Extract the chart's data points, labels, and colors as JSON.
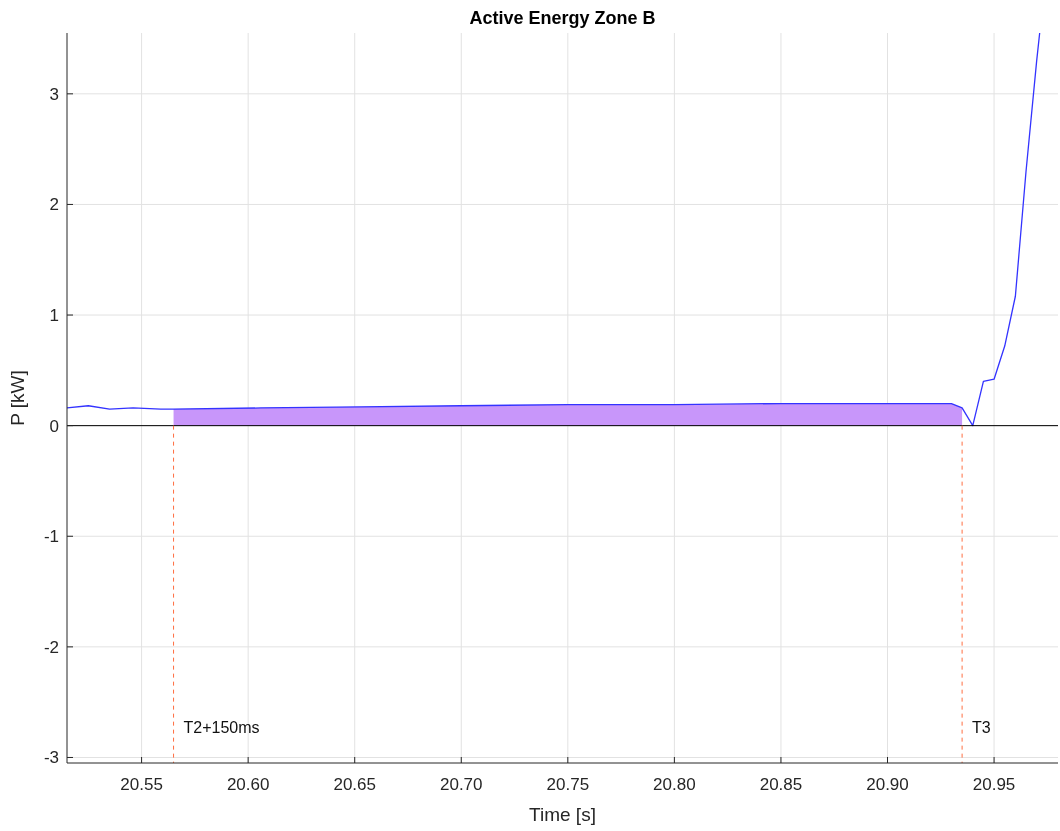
{
  "chart_data": {
    "type": "line",
    "title": "Active Energy Zone B",
    "xlabel": "Time [s]",
    "ylabel": "P [kW]",
    "xlim": [
      20.515,
      20.98
    ],
    "ylim": [
      -3.05,
      3.55
    ],
    "xticks": [
      {
        "value": 20.55,
        "label": "20.55"
      },
      {
        "value": 20.6,
        "label": "20.60"
      },
      {
        "value": 20.65,
        "label": "20.65"
      },
      {
        "value": 20.7,
        "label": "20.70"
      },
      {
        "value": 20.75,
        "label": "20.75"
      },
      {
        "value": 20.8,
        "label": "20.80"
      },
      {
        "value": 20.85,
        "label": "20.85"
      },
      {
        "value": 20.9,
        "label": "20.90"
      },
      {
        "value": 20.95,
        "label": "20.95"
      }
    ],
    "yticks": [
      -3,
      -2,
      -1,
      0,
      1,
      2,
      3
    ],
    "grid": true,
    "series": [
      {
        "type": "area",
        "color": "#c896fa",
        "x": [
          20.565,
          20.606,
          20.653,
          20.7,
          20.75,
          20.8,
          20.85,
          20.9,
          20.93,
          20.935
        ],
        "values": [
          0.15,
          0.16,
          0.17,
          0.18,
          0.19,
          0.19,
          0.2,
          0.2,
          0.2,
          0.16
        ]
      },
      {
        "color": "#3333ff",
        "x": [
          20.515,
          20.525,
          20.535,
          20.546,
          20.559,
          20.565,
          20.606,
          20.653,
          20.7,
          20.75,
          20.8,
          20.85,
          20.9,
          20.93,
          20.935,
          20.94,
          20.945,
          20.95,
          20.955,
          20.96,
          20.965,
          20.97,
          20.9714
        ],
        "values": [
          0.16,
          0.18,
          0.15,
          0.16,
          0.15,
          0.15,
          0.16,
          0.17,
          0.18,
          0.19,
          0.19,
          0.2,
          0.2,
          0.2,
          0.16,
          0,
          0.4,
          0.42,
          0.72,
          1.17,
          2.3,
          3.3,
          3.55
        ]
      }
    ],
    "ref_lines": [
      {
        "axis": "y",
        "value": 0,
        "color": "#000000",
        "line_style": "solid"
      },
      {
        "axis": "x",
        "value": 20.565,
        "label": "T2+150ms",
        "color": "#ff6e40",
        "line_style": "dashed"
      },
      {
        "axis": "x",
        "value": 20.935,
        "label": "T3",
        "color": "#ff6e40",
        "line_style": "dashed"
      }
    ]
  }
}
